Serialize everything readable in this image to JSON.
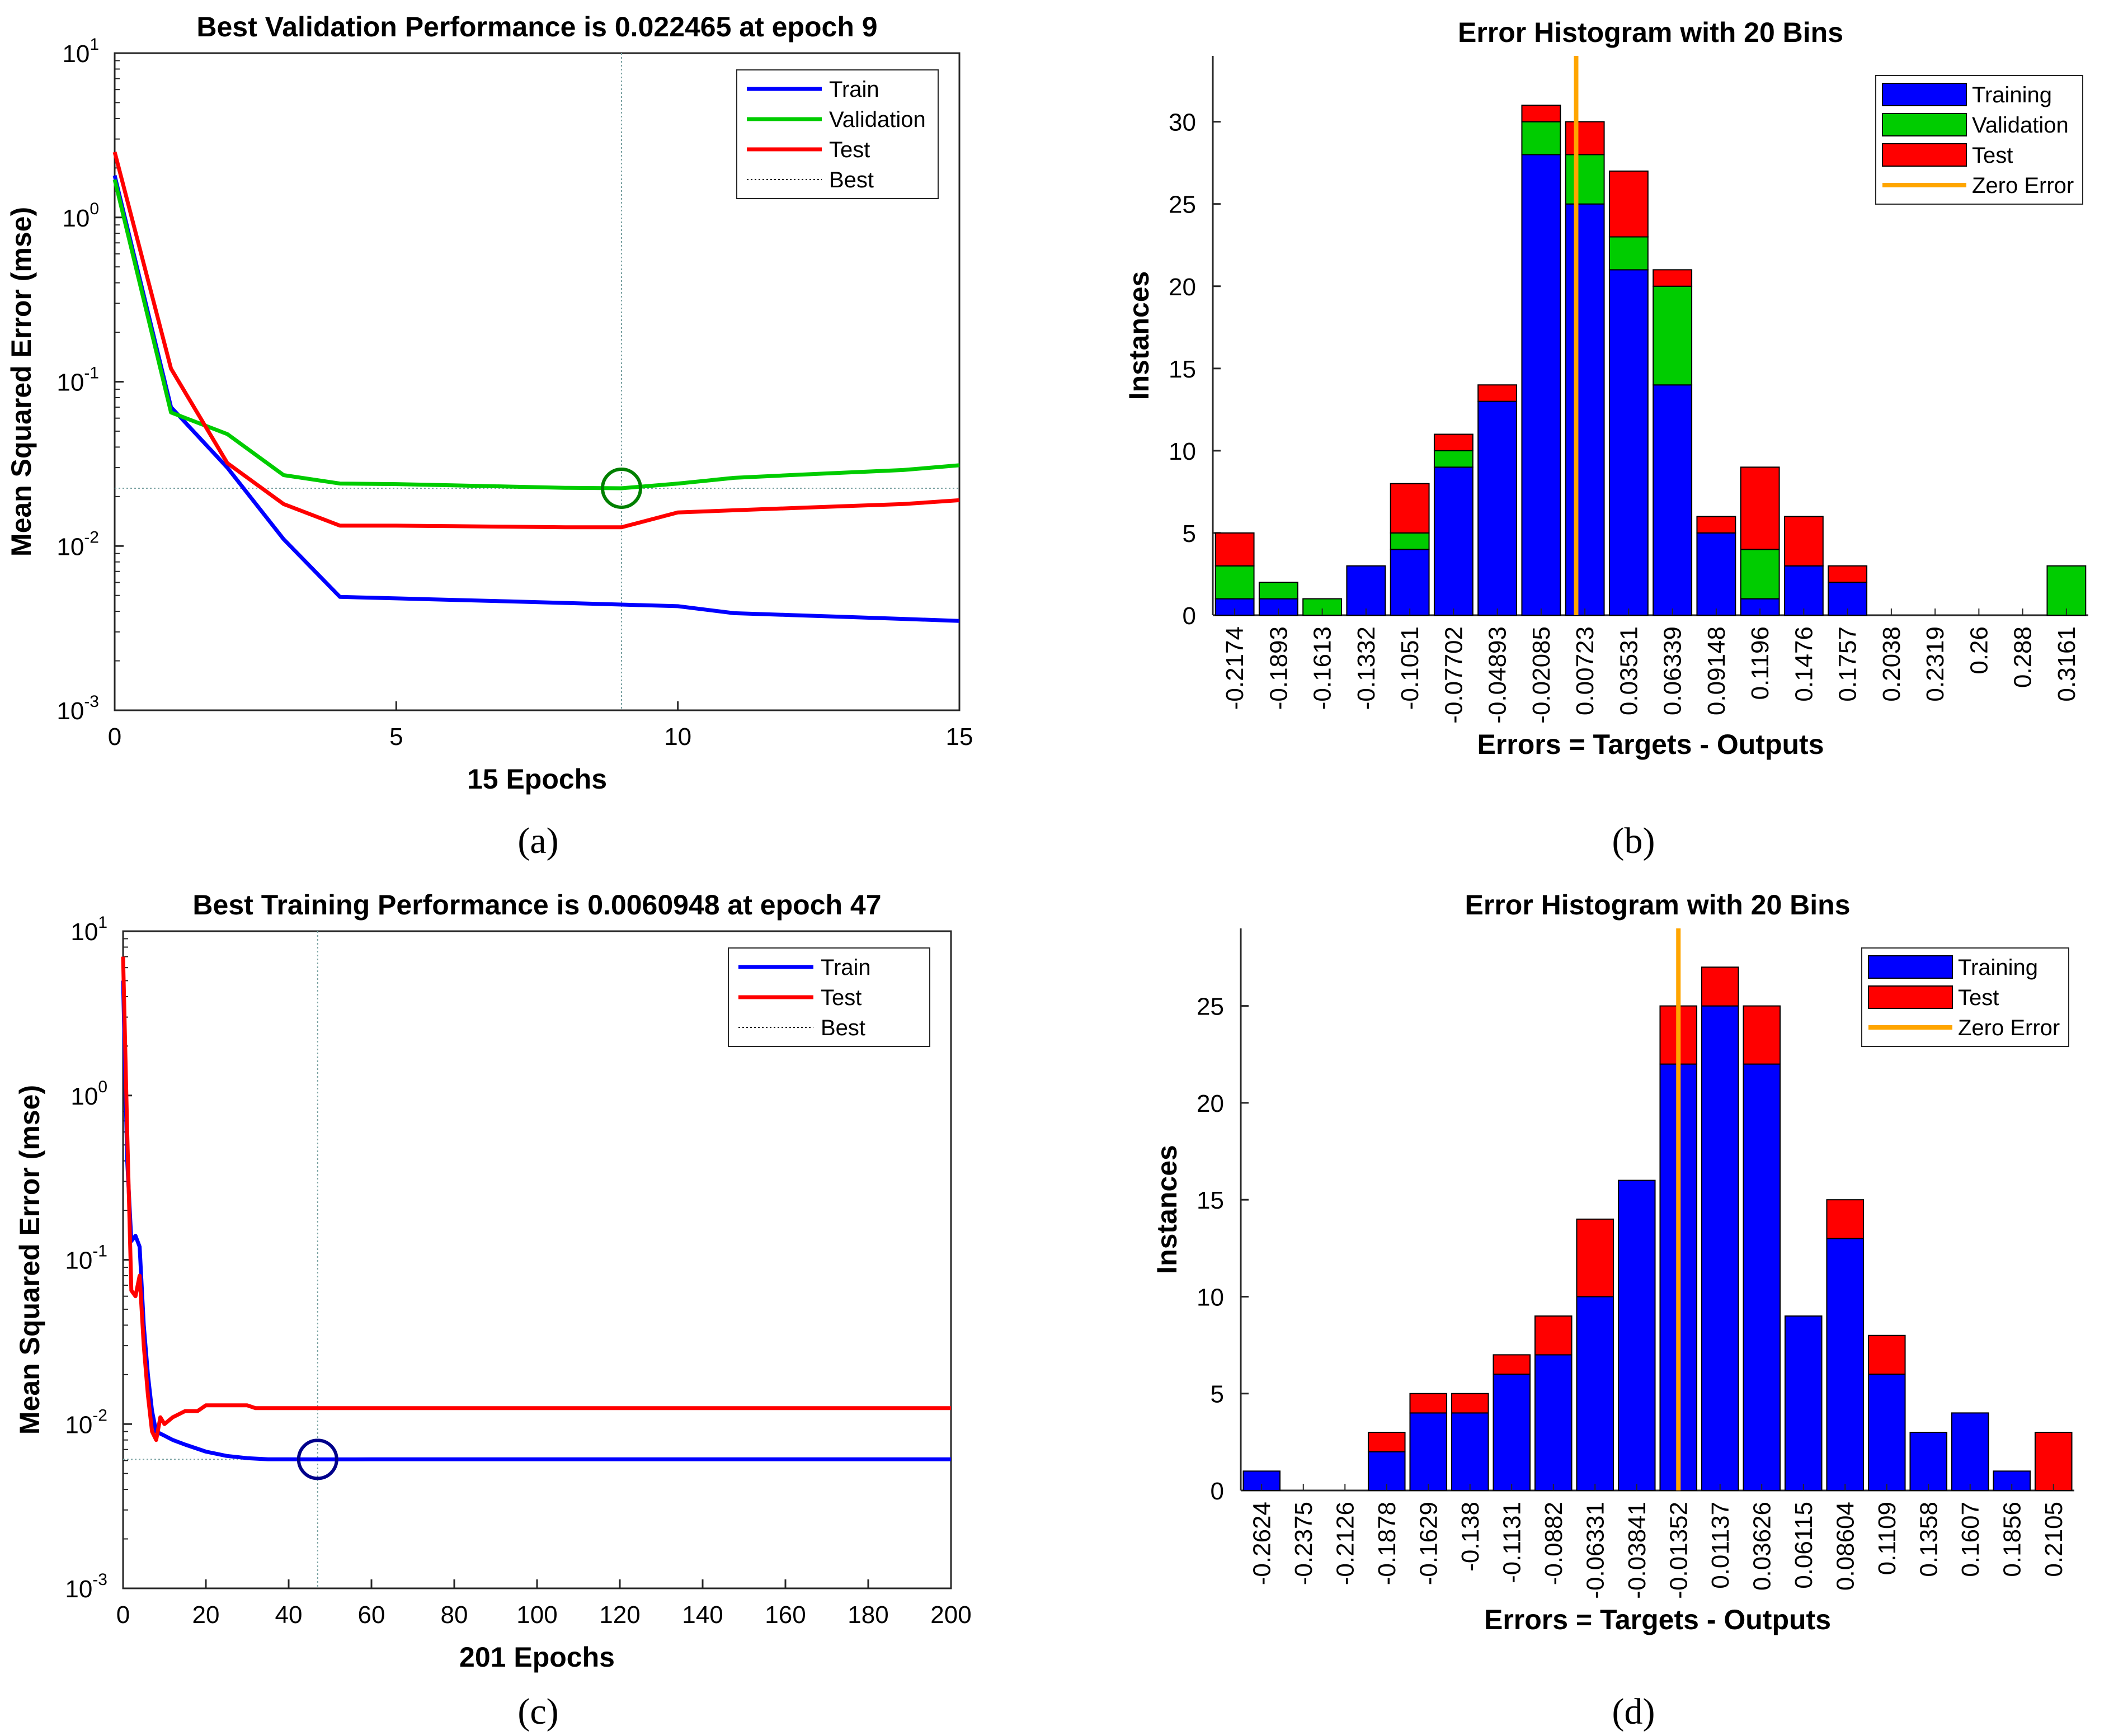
{
  "colors": {
    "train": "#0000ff",
    "validation": "#00cc00",
    "test": "#ff0000",
    "zero_error": "#ffa500",
    "best_grid": "#7aa2a2",
    "axis": "#262626"
  },
  "chart_data": [
    {
      "panel_label": "(a)",
      "type": "line",
      "y_scale": "log",
      "title": "Best Validation Performance is 0.022465 at epoch 9",
      "xlabel": "15 Epochs",
      "ylabel": "Mean Squared Error  (mse)",
      "xlim": [
        0,
        15
      ],
      "ylim_exp": [
        -3,
        1
      ],
      "xticks": [
        "0",
        "5",
        "10",
        "15"
      ],
      "xtick_values": [
        0,
        5,
        10,
        15
      ],
      "yticks": [
        {
          "base": "10",
          "exp": "1"
        },
        {
          "base": "10",
          "exp": "0"
        },
        {
          "base": "10",
          "exp": "-1"
        },
        {
          "base": "10",
          "exp": "-2"
        },
        {
          "base": "10",
          "exp": "-3"
        }
      ],
      "legend": {
        "position": "top-right",
        "entries": [
          "Train",
          "Validation",
          "Test",
          "Best"
        ]
      },
      "series": [
        {
          "name": "Train",
          "color": "#0000ff",
          "x": [
            0,
            1,
            2,
            3,
            4,
            5,
            6,
            7,
            8,
            9,
            10,
            11,
            12,
            13,
            14,
            15
          ],
          "y": [
            1.8,
            0.07,
            0.03,
            0.011,
            0.0049,
            0.0048,
            0.0047,
            0.0046,
            0.0045,
            0.0044,
            0.0043,
            0.0039,
            0.0038,
            0.0037,
            0.0036,
            0.0035
          ]
        },
        {
          "name": "Validation",
          "color": "#00cc00",
          "x": [
            0,
            1,
            2,
            3,
            4,
            5,
            6,
            7,
            8,
            9,
            10,
            11,
            12,
            13,
            14,
            15
          ],
          "y": [
            1.7,
            0.065,
            0.048,
            0.027,
            0.024,
            0.0238,
            0.0234,
            0.023,
            0.0226,
            0.022465,
            0.024,
            0.026,
            0.027,
            0.028,
            0.029,
            0.031
          ]
        },
        {
          "name": "Test",
          "color": "#ff0000",
          "x": [
            0,
            1,
            2,
            3,
            4,
            5,
            6,
            7,
            8,
            9,
            10,
            11,
            12,
            13,
            14,
            15
          ],
          "y": [
            2.5,
            0.12,
            0.032,
            0.018,
            0.0133,
            0.0133,
            0.0132,
            0.0131,
            0.013,
            0.013,
            0.016,
            0.0165,
            0.017,
            0.0175,
            0.018,
            0.019
          ]
        }
      ],
      "best": {
        "x": 9,
        "y": 0.022465,
        "marker_color": "#008000"
      }
    },
    {
      "panel_label": "(b)",
      "type": "bar",
      "stacked": true,
      "title": "Error Histogram with 20 Bins",
      "xlabel": "Errors = Targets - Outputs",
      "ylabel": "Instances",
      "ylim": [
        0,
        34
      ],
      "yticks": [
        0,
        5,
        10,
        15,
        20,
        25,
        30
      ],
      "categories": [
        "-0.2174",
        "-0.1893",
        "-0.1613",
        "-0.1332",
        "-0.1051",
        "-0.07702",
        "-0.04893",
        "-0.02085",
        "0.00723",
        "0.03531",
        "0.06339",
        "0.09148",
        "0.1196",
        "0.1476",
        "0.1757",
        "0.2038",
        "0.2319",
        "0.26",
        "0.288",
        "0.3161"
      ],
      "series": [
        {
          "name": "Training",
          "color": "#0000ff",
          "values": [
            1,
            1,
            0,
            3,
            4,
            9,
            13,
            28,
            25,
            21,
            14,
            5,
            1,
            3,
            2,
            0,
            0,
            0,
            0,
            0
          ]
        },
        {
          "name": "Validation",
          "color": "#00cc00",
          "values": [
            2,
            1,
            1,
            0,
            1,
            1,
            0,
            2,
            3,
            2,
            6,
            0,
            3,
            0,
            0,
            0,
            0,
            0,
            0,
            3
          ]
        },
        {
          "name": "Test",
          "color": "#ff0000",
          "values": [
            2,
            0,
            0,
            0,
            3,
            1,
            1,
            1,
            2,
            4,
            1,
            1,
            5,
            3,
            1,
            0,
            0,
            0,
            0,
            0
          ]
        }
      ],
      "zero_error_position": 8.3,
      "legend": {
        "position": "top-right",
        "entries": [
          "Training",
          "Validation",
          "Test",
          "Zero Error"
        ]
      }
    },
    {
      "panel_label": "(c)",
      "type": "line",
      "y_scale": "log",
      "title": "Best Training Performance is 0.0060948 at epoch 47",
      "xlabel": "201 Epochs",
      "ylabel": "Mean Squared Error  (mse)",
      "xlim": [
        0,
        200
      ],
      "ylim_exp": [
        -3,
        1
      ],
      "xticks": [
        "0",
        "20",
        "40",
        "60",
        "80",
        "100",
        "120",
        "140",
        "160",
        "180",
        "200"
      ],
      "xtick_values": [
        0,
        20,
        40,
        60,
        80,
        100,
        120,
        140,
        160,
        180,
        200
      ],
      "yticks": [
        {
          "base": "10",
          "exp": "1"
        },
        {
          "base": "10",
          "exp": "0"
        },
        {
          "base": "10",
          "exp": "-1"
        },
        {
          "base": "10",
          "exp": "-2"
        },
        {
          "base": "10",
          "exp": "-3"
        }
      ],
      "legend": {
        "position": "top-right",
        "entries": [
          "Train",
          "Test",
          "Best"
        ]
      },
      "series": [
        {
          "name": "Train",
          "color": "#0000ff",
          "x": [
            0,
            1,
            2,
            3,
            4,
            5,
            6,
            7,
            8,
            10,
            12,
            15,
            20,
            25,
            30,
            35,
            40,
            47,
            60,
            100,
            150,
            200
          ],
          "y": [
            5,
            0.4,
            0.13,
            0.14,
            0.12,
            0.04,
            0.02,
            0.012,
            0.009,
            0.0085,
            0.008,
            0.0075,
            0.0068,
            0.0064,
            0.0062,
            0.0061,
            0.0061,
            0.0060948,
            0.0061,
            0.0061,
            0.0061,
            0.0061
          ]
        },
        {
          "name": "Test",
          "color": "#ff0000",
          "x": [
            0,
            1,
            2,
            3,
            4,
            5,
            6,
            7,
            8,
            9,
            10,
            12,
            15,
            18,
            20,
            25,
            30,
            32,
            40,
            60,
            100,
            150,
            200
          ],
          "y": [
            7,
            0.6,
            0.065,
            0.06,
            0.08,
            0.03,
            0.015,
            0.009,
            0.008,
            0.011,
            0.01,
            0.011,
            0.012,
            0.012,
            0.013,
            0.013,
            0.013,
            0.0125,
            0.0125,
            0.0125,
            0.0125,
            0.0125,
            0.0125
          ]
        }
      ],
      "best": {
        "x": 47,
        "y": 0.0060948,
        "marker_color": "#00008b"
      }
    },
    {
      "panel_label": "(d)",
      "type": "bar",
      "stacked": true,
      "title": "Error Histogram with 20 Bins",
      "xlabel": "Errors = Targets - Outputs",
      "ylabel": "Instances",
      "ylim": [
        0,
        29
      ],
      "yticks": [
        0,
        5,
        10,
        15,
        20,
        25
      ],
      "categories": [
        "-0.2624",
        "-0.2375",
        "-0.2126",
        "-0.1878",
        "-0.1629",
        "-0.138",
        "-0.1131",
        "-0.0882",
        "-0.06331",
        "-0.03841",
        "-0.01352",
        "0.01137",
        "0.03626",
        "0.06115",
        "0.08604",
        "0.1109",
        "0.1358",
        "0.1607",
        "0.1856",
        "0.2105"
      ],
      "series": [
        {
          "name": "Training",
          "color": "#0000ff",
          "values": [
            1,
            0,
            0,
            2,
            4,
            4,
            6,
            7,
            10,
            16,
            22,
            25,
            22,
            9,
            13,
            6,
            3,
            4,
            1,
            0
          ]
        },
        {
          "name": "Test",
          "color": "#ff0000",
          "values": [
            0,
            0,
            0,
            1,
            1,
            1,
            1,
            2,
            4,
            0,
            3,
            2,
            3,
            0,
            2,
            2,
            0,
            0,
            0,
            3
          ]
        }
      ],
      "zero_error_position": 10.5,
      "legend": {
        "position": "top-right",
        "entries": [
          "Training",
          "Test",
          "Zero Error"
        ]
      }
    }
  ]
}
